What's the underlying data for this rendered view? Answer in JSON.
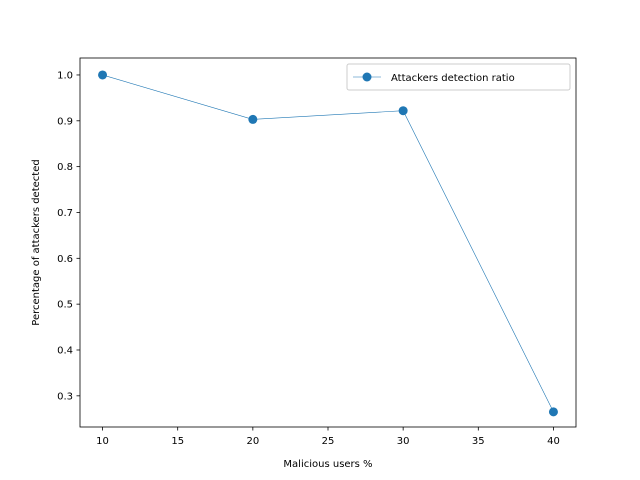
{
  "chart_data": {
    "type": "line",
    "xlabel": "Malicious users %",
    "ylabel": "Percentage of attackers detected",
    "xlim": [
      8.5,
      41.5
    ],
    "ylim": [
      0.232,
      1.037
    ],
    "x_ticks": [
      10,
      15,
      20,
      25,
      30,
      35,
      40
    ],
    "y_ticks": [
      0.3,
      0.4,
      0.5,
      0.6,
      0.7,
      0.8,
      0.9,
      1.0
    ],
    "x_tick_labels": [
      "10",
      "15",
      "20",
      "25",
      "30",
      "35",
      "40"
    ],
    "y_tick_labels": [
      "0.3",
      "0.4",
      "0.5",
      "0.6",
      "0.7",
      "0.8",
      "0.9",
      "1.0"
    ],
    "grid": false,
    "legend_placement": "top-right",
    "series": [
      {
        "name": "Attackers detection ratio",
        "color": "#1f77b4",
        "marker": "circle",
        "x": [
          10,
          20,
          30,
          40
        ],
        "y": [
          1.0,
          0.903,
          0.922,
          0.265
        ]
      }
    ]
  }
}
